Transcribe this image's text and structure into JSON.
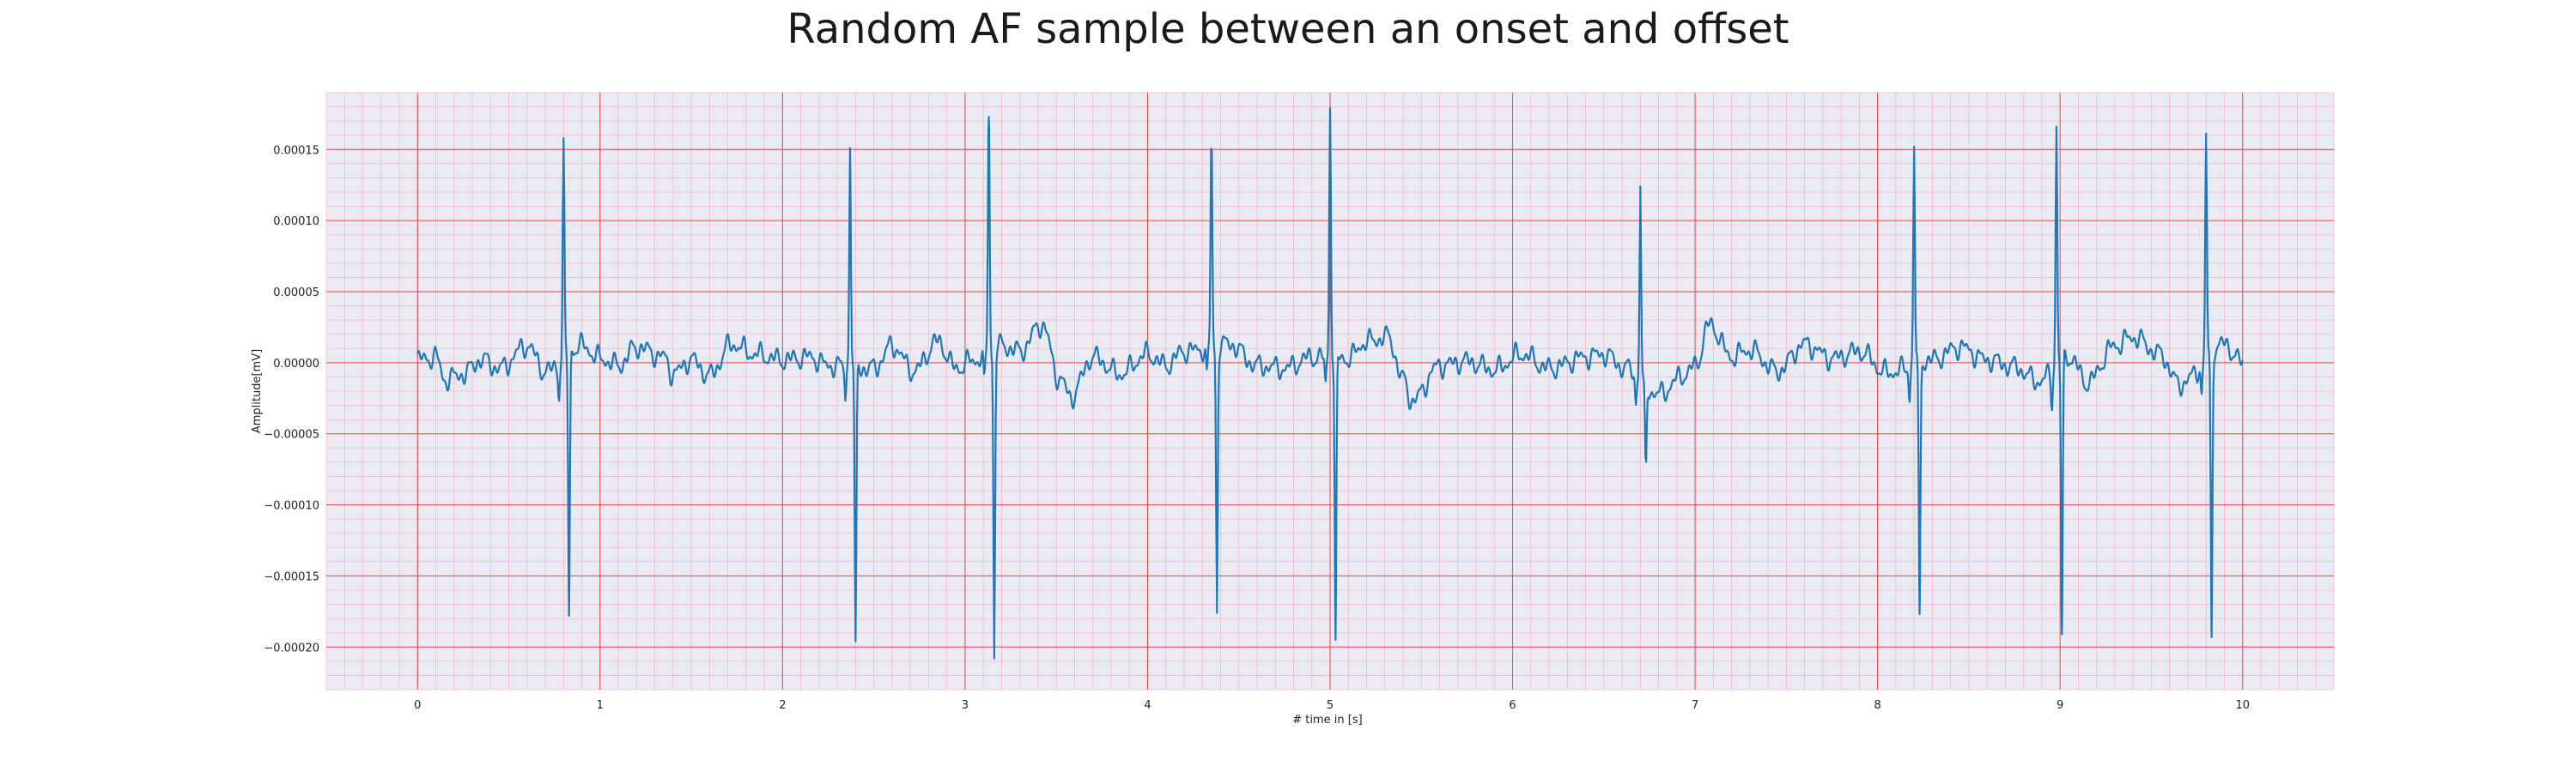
{
  "chart_data": {
    "type": "line",
    "title": "Random AF sample between an onset and offset",
    "xlabel": "# time in [s]",
    "ylabel": "Amplitude[mV]",
    "xlim": [
      -0.5,
      10.5
    ],
    "ylim": [
      -0.00023,
      0.00019
    ],
    "x_ticks": [
      0,
      1,
      2,
      3,
      4,
      5,
      6,
      7,
      8,
      9,
      10
    ],
    "x_tick_labels": [
      "0",
      "1",
      "2",
      "3",
      "4",
      "5",
      "6",
      "7",
      "8",
      "9",
      "10"
    ],
    "y_ticks": [
      0.00015,
      0.0001,
      5e-05,
      0,
      -5e-05,
      -0.0001,
      -0.00015,
      -0.0002
    ],
    "y_tick_labels": [
      "0.00015",
      "0.00010",
      "0.00005",
      "0.00000",
      "−0.00005",
      "−0.00010",
      "−0.00015",
      "−0.00020"
    ],
    "grid": "major red, minor pink",
    "series": [
      {
        "color": "#1f77b4",
        "beats": [
          {
            "t": 0.8,
            "peak": 0.00015,
            "trough": -0.000178
          },
          {
            "t": 2.37,
            "peak": 0.000151,
            "trough": -0.000196
          },
          {
            "t": 3.13,
            "peak": 0.000173,
            "trough": -0.000208
          },
          {
            "t": 4.35,
            "peak": 0.00015,
            "trough": -0.000176
          },
          {
            "t": 5.0,
            "peak": 0.000179,
            "trough": -0.000195
          },
          {
            "t": 6.7,
            "peak": 0.000124,
            "trough": -6.5e-05
          },
          {
            "t": 8.2,
            "peak": 0.000152,
            "trough": -0.000177
          },
          {
            "t": 8.98,
            "peak": 0.000166,
            "trough": -0.000191
          },
          {
            "t": 9.8,
            "peak": 0.000155,
            "trough": -0.000193
          }
        ],
        "baseline": [
          [
            0.0,
            2e-06
          ],
          [
            0.1,
            4e-06
          ],
          [
            0.15,
            -1.2e-05
          ],
          [
            0.25,
            -8e-06
          ],
          [
            0.35,
            2e-06
          ],
          [
            0.45,
            -4e-06
          ],
          [
            0.6,
            1.2e-05
          ],
          [
            0.7,
            -6e-06
          ],
          [
            0.9,
            1.2e-05
          ],
          [
            1.0,
            3e-06
          ],
          [
            1.1,
            -2e-06
          ],
          [
            1.2,
            1.1e-05
          ],
          [
            1.35,
            4e-06
          ],
          [
            1.4,
            -8e-06
          ],
          [
            1.5,
            2e-06
          ],
          [
            1.6,
            -9e-06
          ],
          [
            1.72,
            1.3e-05
          ],
          [
            1.85,
            6e-06
          ],
          [
            2.0,
            2e-06
          ],
          [
            2.15,
            4e-06
          ],
          [
            2.25,
            -2e-06
          ],
          [
            2.5,
            -4e-06
          ],
          [
            2.6,
            1.2e-05
          ],
          [
            2.72,
            -6e-06
          ],
          [
            2.85,
            1.5e-05
          ],
          [
            2.95,
            -4e-06
          ],
          [
            3.05,
            2e-06
          ],
          [
            3.2,
            1.2e-05
          ],
          [
            3.3,
            8e-06
          ],
          [
            3.42,
            2.7e-05
          ],
          [
            3.52,
            -1.2e-05
          ],
          [
            3.58,
            -2.4e-05
          ],
          [
            3.7,
            4e-06
          ],
          [
            3.85,
            -8e-06
          ],
          [
            4.0,
            6e-06
          ],
          [
            4.1,
            -2e-06
          ],
          [
            4.2,
            8e-06
          ],
          [
            4.45,
            1.3e-05
          ],
          [
            4.6,
            -2e-06
          ],
          [
            4.75,
            -4e-06
          ],
          [
            4.9,
            4e-06
          ],
          [
            5.1,
            3e-06
          ],
          [
            5.2,
            1.5e-05
          ],
          [
            5.32,
            1.8e-05
          ],
          [
            5.4,
            -1.2e-05
          ],
          [
            5.45,
            -2.7e-05
          ],
          [
            5.6,
            -2e-06
          ],
          [
            5.75,
            1e-06
          ],
          [
            5.9,
            -5e-06
          ],
          [
            6.05,
            6e-06
          ],
          [
            6.2,
            -4e-06
          ],
          [
            6.4,
            4e-06
          ],
          [
            6.5,
            6e-06
          ],
          [
            6.62,
            -4e-06
          ],
          [
            6.8,
            -2.2e-05
          ],
          [
            6.95,
            -8e-06
          ],
          [
            7.0,
            -2e-06
          ],
          [
            7.08,
            2.7e-05
          ],
          [
            7.2,
            4e-06
          ],
          [
            7.3,
            9e-06
          ],
          [
            7.45,
            -6e-06
          ],
          [
            7.6,
            1.3e-05
          ],
          [
            7.75,
            3e-06
          ],
          [
            7.9,
            8e-06
          ],
          [
            8.05,
            -7e-06
          ],
          [
            8.3,
            2e-06
          ],
          [
            8.45,
            1.1e-05
          ],
          [
            8.6,
            2e-06
          ],
          [
            8.75,
            -3e-06
          ],
          [
            8.88,
            -1.3e-05
          ],
          [
            9.05,
            4e-06
          ],
          [
            9.15,
            -1.4e-05
          ],
          [
            9.3,
            1.2e-05
          ],
          [
            9.4,
            1.8e-05
          ],
          [
            9.55,
            6e-06
          ],
          [
            9.65,
            -1.5e-05
          ],
          [
            9.9,
            1.3e-05
          ],
          [
            10.0,
            0.0
          ]
        ]
      }
    ]
  }
}
